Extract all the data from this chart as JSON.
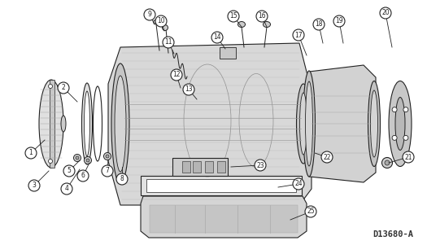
{
  "bg_color": "#ffffff",
  "line_color": "#222222",
  "fig_label": "D13680-A",
  "figsize": [
    5.25,
    3.01
  ],
  "dpi": 100,
  "labels_pos": {
    "1": [
      38,
      188,
      55,
      172
    ],
    "2": [
      78,
      108,
      95,
      125
    ],
    "3": [
      42,
      228,
      60,
      210
    ],
    "4": [
      82,
      232,
      98,
      208
    ],
    "5": [
      85,
      210,
      98,
      197
    ],
    "6": [
      102,
      216,
      110,
      200
    ],
    "7": [
      132,
      210,
      133,
      197
    ],
    "8": [
      150,
      220,
      150,
      205
    ],
    "9": [
      184,
      18,
      190,
      30
    ],
    "10": [
      198,
      26,
      202,
      38
    ],
    "11": [
      207,
      52,
      214,
      66
    ],
    "12": [
      217,
      92,
      222,
      108
    ],
    "13": [
      232,
      110,
      242,
      122
    ],
    "14": [
      267,
      46,
      277,
      60
    ],
    "15": [
      287,
      20,
      297,
      33
    ],
    "16": [
      322,
      20,
      328,
      33
    ],
    "17": [
      367,
      43,
      377,
      68
    ],
    "18": [
      392,
      30,
      397,
      53
    ],
    "19": [
      417,
      26,
      422,
      53
    ],
    "20": [
      474,
      16,
      482,
      58
    ],
    "21": [
      502,
      193,
      478,
      200
    ],
    "22": [
      402,
      193,
      387,
      188
    ],
    "23": [
      320,
      203,
      284,
      205
    ],
    "24": [
      367,
      226,
      342,
      230
    ],
    "25": [
      382,
      260,
      357,
      270
    ]
  }
}
